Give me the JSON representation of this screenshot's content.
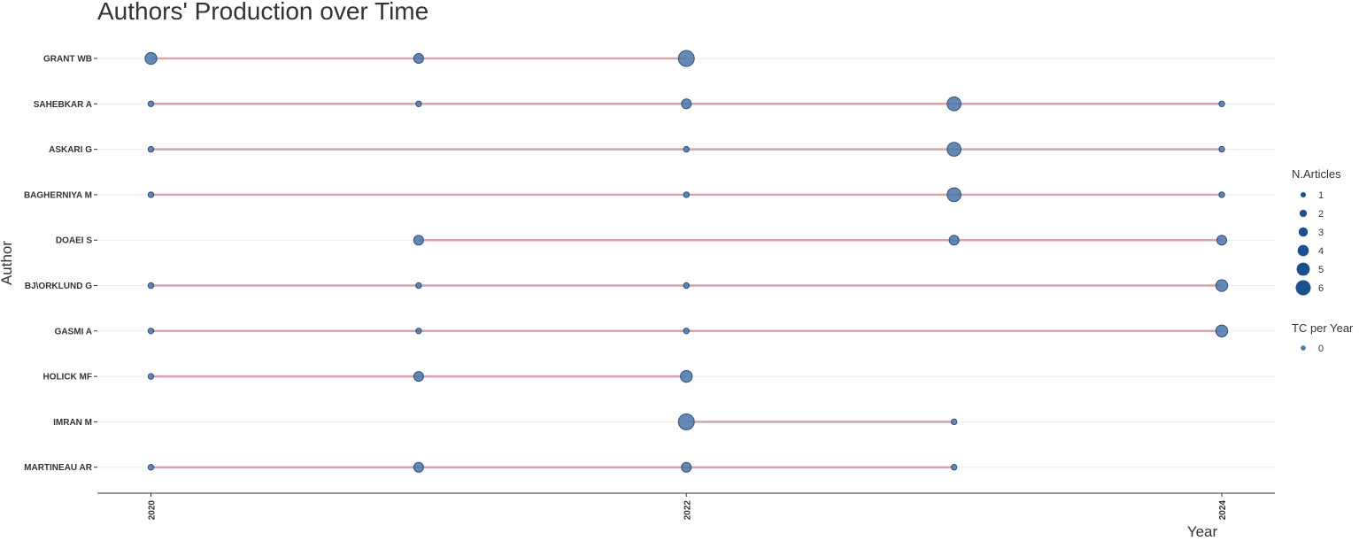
{
  "chart_data": {
    "type": "scatter",
    "title": "Authors' Production over Time",
    "xlabel": "Year",
    "ylabel": "Author",
    "xlim": [
      2019.8,
      2024.2
    ],
    "x_ticks": [
      "2020",
      "2022",
      "2024"
    ],
    "authors": [
      "GRANT WB",
      "SAHEBKAR A",
      "ASKARI G",
      "BAGHERNIYA M",
      "DOAEI S",
      "BJ\\ORKLUND G",
      "GASMI A",
      "HOLICK MF",
      "IMRAN M",
      "MARTINEAU AR"
    ],
    "series": [
      {
        "author": "GRANT WB",
        "points": [
          {
            "x": 2020,
            "n": 4
          },
          {
            "x": 2021,
            "n": 3
          },
          {
            "x": 2022,
            "n": 6
          }
        ]
      },
      {
        "author": "SAHEBKAR A",
        "points": [
          {
            "x": 2020,
            "n": 1
          },
          {
            "x": 2021,
            "n": 1
          },
          {
            "x": 2022,
            "n": 3
          },
          {
            "x": 2023,
            "n": 5
          },
          {
            "x": 2024,
            "n": 1
          }
        ]
      },
      {
        "author": "ASKARI G",
        "points": [
          {
            "x": 2020,
            "n": 1
          },
          {
            "x": 2022,
            "n": 1
          },
          {
            "x": 2023,
            "n": 5
          },
          {
            "x": 2024,
            "n": 1
          }
        ]
      },
      {
        "author": "BAGHERNIYA M",
        "points": [
          {
            "x": 2020,
            "n": 1
          },
          {
            "x": 2022,
            "n": 1
          },
          {
            "x": 2023,
            "n": 5
          },
          {
            "x": 2024,
            "n": 1
          }
        ]
      },
      {
        "author": "DOAEI S",
        "points": [
          {
            "x": 2021,
            "n": 3
          },
          {
            "x": 2023,
            "n": 3
          },
          {
            "x": 2024,
            "n": 3
          }
        ]
      },
      {
        "author": "BJ\\ORKLUND G",
        "points": [
          {
            "x": 2020,
            "n": 1
          },
          {
            "x": 2021,
            "n": 1
          },
          {
            "x": 2022,
            "n": 1
          },
          {
            "x": 2024,
            "n": 4
          }
        ]
      },
      {
        "author": "GASMI A",
        "points": [
          {
            "x": 2020,
            "n": 1
          },
          {
            "x": 2021,
            "n": 1
          },
          {
            "x": 2022,
            "n": 1
          },
          {
            "x": 2024,
            "n": 4
          }
        ]
      },
      {
        "author": "HOLICK MF",
        "points": [
          {
            "x": 2020,
            "n": 1
          },
          {
            "x": 2021,
            "n": 3
          },
          {
            "x": 2022,
            "n": 4
          }
        ]
      },
      {
        "author": "IMRAN M",
        "points": [
          {
            "x": 2022,
            "n": 6
          },
          {
            "x": 2023,
            "n": 1
          }
        ]
      },
      {
        "author": "MARTINEAU AR",
        "points": [
          {
            "x": 2020,
            "n": 1
          },
          {
            "x": 2021,
            "n": 3
          },
          {
            "x": 2022,
            "n": 3
          },
          {
            "x": 2023,
            "n": 1
          }
        ]
      }
    ],
    "legend": {
      "size_title": "N.Articles",
      "size_values": [
        "1",
        "2",
        "3",
        "4",
        "5",
        "6"
      ],
      "color_title": "TC per Year",
      "color_values": [
        "0"
      ],
      "placement": "right"
    },
    "colors": {
      "point_fill": "#4a74a8",
      "point_stroke": "#2c4f7c",
      "legend_point": "#1b4f8f",
      "line": "#d4a5ab",
      "grid": "#ebebeb",
      "axis": "#333333"
    },
    "grid": true
  }
}
